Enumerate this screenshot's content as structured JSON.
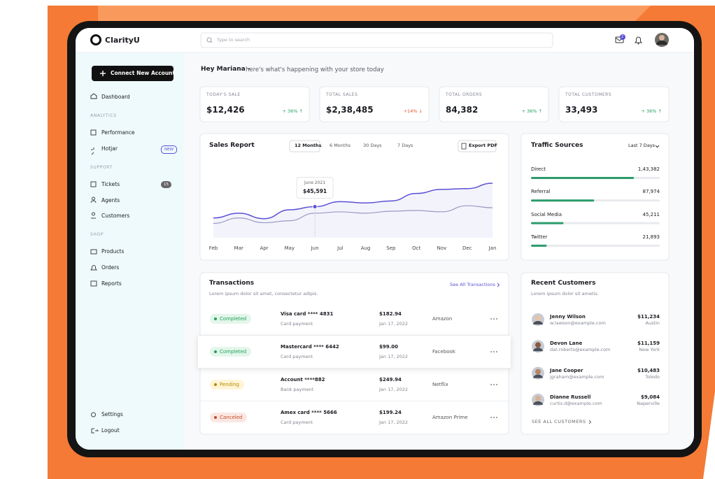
{
  "brand": "ClarityU",
  "search_placeholder": "Type to search",
  "notification_count": "2",
  "sidebar": {
    "button": "Connect New Account",
    "dashboard": "Dashboard",
    "sections": [
      {
        "title": "ANALYTICS",
        "items": [
          {
            "label": "Performance"
          },
          {
            "label": "Hotjar",
            "badge": "NEW"
          }
        ]
      },
      {
        "title": "SUPPORT",
        "items": [
          {
            "label": "Tickets",
            "badge": "15"
          },
          {
            "label": "Agents"
          },
          {
            "label": "Customers"
          }
        ]
      },
      {
        "title": "SHOP",
        "items": [
          {
            "label": "Products"
          },
          {
            "label": "Orders"
          },
          {
            "label": "Reports"
          }
        ]
      }
    ],
    "settings": "Settings",
    "logout": "Logout"
  },
  "greeting": {
    "name": "Hey Mariana -",
    "text": "here's what's happening with your store today"
  },
  "stats": [
    {
      "label": "TODAY'S SALE",
      "value": "$12,426",
      "change": "+ 36% ↑",
      "color": "#23a15c"
    },
    {
      "label": "TOTAL SALES",
      "value": "$2,38,485",
      "change": "+14% ↓",
      "color": "#e2582c"
    },
    {
      "label": "TOTAL ORDERS",
      "value": "84,382",
      "change": "+ 36% ↑",
      "color": "#23a15c"
    },
    {
      "label": "TOTAL CUSTOMERS",
      "value": "33,493",
      "change": "+ 36% ↑",
      "color": "#23a15c"
    }
  ],
  "sales_report": {
    "title": "Sales Report",
    "tabs": [
      "12 Months",
      "6 Months",
      "30 Days",
      "7 Days"
    ],
    "export": "Export PDF",
    "categories": [
      "Feb",
      "Mar",
      "Apr",
      "May",
      "Jun",
      "Jul",
      "Aug",
      "Sep",
      "Oct",
      "Nov",
      "Dec",
      "Jan"
    ],
    "series": [
      {
        "color": "#5a50d6",
        "values": [
          29000,
          36000,
          28000,
          41000,
          45591,
          53000,
          51000,
          54000,
          65000,
          71000,
          72000,
          80000
        ]
      },
      {
        "color": "#9a98c0",
        "values": [
          21000,
          29000,
          22000,
          25000,
          36000,
          38000,
          36000,
          39000,
          40000,
          38000,
          47000,
          44000
        ]
      }
    ],
    "tooltip": {
      "date": "June 2021",
      "value": "$45,591"
    }
  },
  "traffic_sources": {
    "title": "Traffic Sources",
    "period": "Last 7 Days",
    "color": "#2c9c6c",
    "items": [
      {
        "name": "Direct",
        "value": 143382,
        "label": "1,43,382"
      },
      {
        "name": "Referral",
        "value": 87974,
        "label": "87,974"
      },
      {
        "name": "Social Media",
        "value": 45211,
        "label": "45,211"
      },
      {
        "name": "Twitter",
        "value": 21893,
        "label": "21,893"
      }
    ]
  },
  "transactions": {
    "title": "Transactions",
    "subtitle": "Lorem ipsum dolor sit amet, consectetur adipis.",
    "link": "See All Transactions",
    "rows": [
      {
        "status": "Completed",
        "card": "Visa card **** 4831",
        "method": "Card payment",
        "amount": "$182.94",
        "date": "Jan 17, 2022",
        "merchant": "Amazon"
      },
      {
        "status": "Completed",
        "card": "Mastercard **** 6442",
        "method": "Card payment",
        "amount": "$99.00",
        "date": "Jan 17, 2022",
        "merchant": "Facebook"
      },
      {
        "status": "Pending",
        "card": "Account ****882",
        "method": "Bank payment",
        "amount": "$249.94",
        "date": "Jan 17, 2022",
        "merchant": "Netflix"
      },
      {
        "status": "Canceled",
        "card": "Amex card **** 5666",
        "method": "Card payment",
        "amount": "$199.24",
        "date": "Jan 17, 2022",
        "merchant": "Amazon Prime"
      }
    ]
  },
  "recent_customers": {
    "title": "Recent Customers",
    "subtitle": "Lorem ipsum dolor sit ametis.",
    "link": "SEE ALL CUSTOMERS",
    "rows": [
      {
        "name": "Jenny Wilson",
        "email": "w.lawson@example.com",
        "amount": "$11,234",
        "city": "Austin"
      },
      {
        "name": "Devon Lane",
        "email": "dat.roberts@example.com",
        "amount": "$11,159",
        "city": "New York"
      },
      {
        "name": "Jane Cooper",
        "email": "jgraham@example.com",
        "amount": "$10,483",
        "city": "Toledo"
      },
      {
        "name": "Dianne Russell",
        "email": "curtis.d@example.com",
        "amount": "$9,084",
        "city": "Naperville"
      }
    ]
  }
}
